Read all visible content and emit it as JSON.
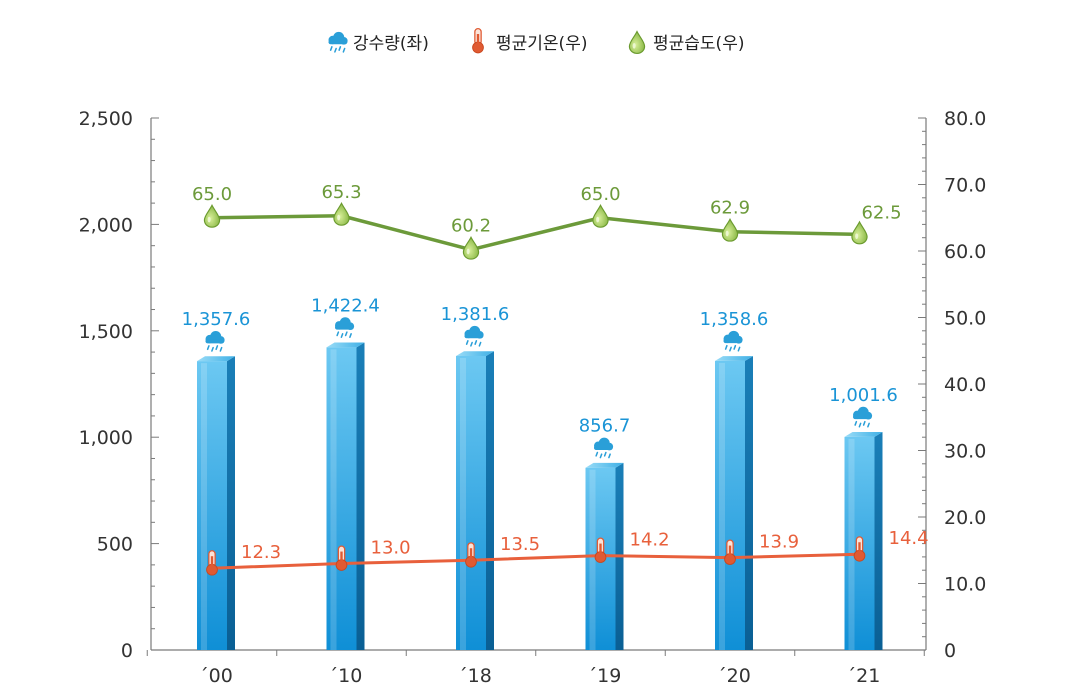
{
  "chart_data": {
    "type": "bar+line",
    "categories": [
      "´00",
      "´10",
      "´18",
      "´19",
      "´20",
      "´21"
    ],
    "legend_position": "top-center",
    "grid": false,
    "y_left": {
      "lim": [
        0,
        2500
      ],
      "ticks": [
        "0",
        "500",
        "1,000",
        "1,500",
        "2,000",
        "2,500"
      ],
      "tick_values": [
        0,
        500,
        1000,
        1500,
        2000,
        2500
      ]
    },
    "y_right": {
      "lim": [
        0,
        80
      ],
      "ticks": [
        "0",
        "10.0",
        "20.0",
        "30.0",
        "40.0",
        "50.0",
        "60.0",
        "70.0",
        "80.0"
      ],
      "tick_values": [
        0,
        10,
        20,
        30,
        40,
        50,
        60,
        70,
        80
      ]
    },
    "series": [
      {
        "name": "강수량(좌)",
        "type": "bar",
        "axis": "left",
        "icon": "rain-cloud-icon",
        "color": "#1b9ee0",
        "values": [
          1357.6,
          1422.4,
          1381.6,
          856.7,
          1358.6,
          1001.6
        ],
        "labels": [
          "1,357.6",
          "1,422.4",
          "1,381.6",
          "856.7",
          "1,358.6",
          "1,001.6"
        ]
      },
      {
        "name": "평균기온(우)",
        "type": "line",
        "axis": "right",
        "icon": "thermometer-icon",
        "color": "#e8603c",
        "values": [
          12.3,
          13.0,
          13.5,
          14.2,
          13.9,
          14.4
        ],
        "labels": [
          "12.3",
          "13.0",
          "13.5",
          "14.2",
          "13.9",
          "14.4"
        ]
      },
      {
        "name": "평균습도(우)",
        "type": "line",
        "axis": "right",
        "icon": "water-drop-icon",
        "color": "#6c9a3a",
        "values": [
          65.0,
          65.3,
          60.2,
          65.0,
          62.9,
          62.5
        ],
        "labels": [
          "65.0",
          "65.3",
          "60.2",
          "65.0",
          "62.9",
          "62.5"
        ]
      }
    ]
  }
}
